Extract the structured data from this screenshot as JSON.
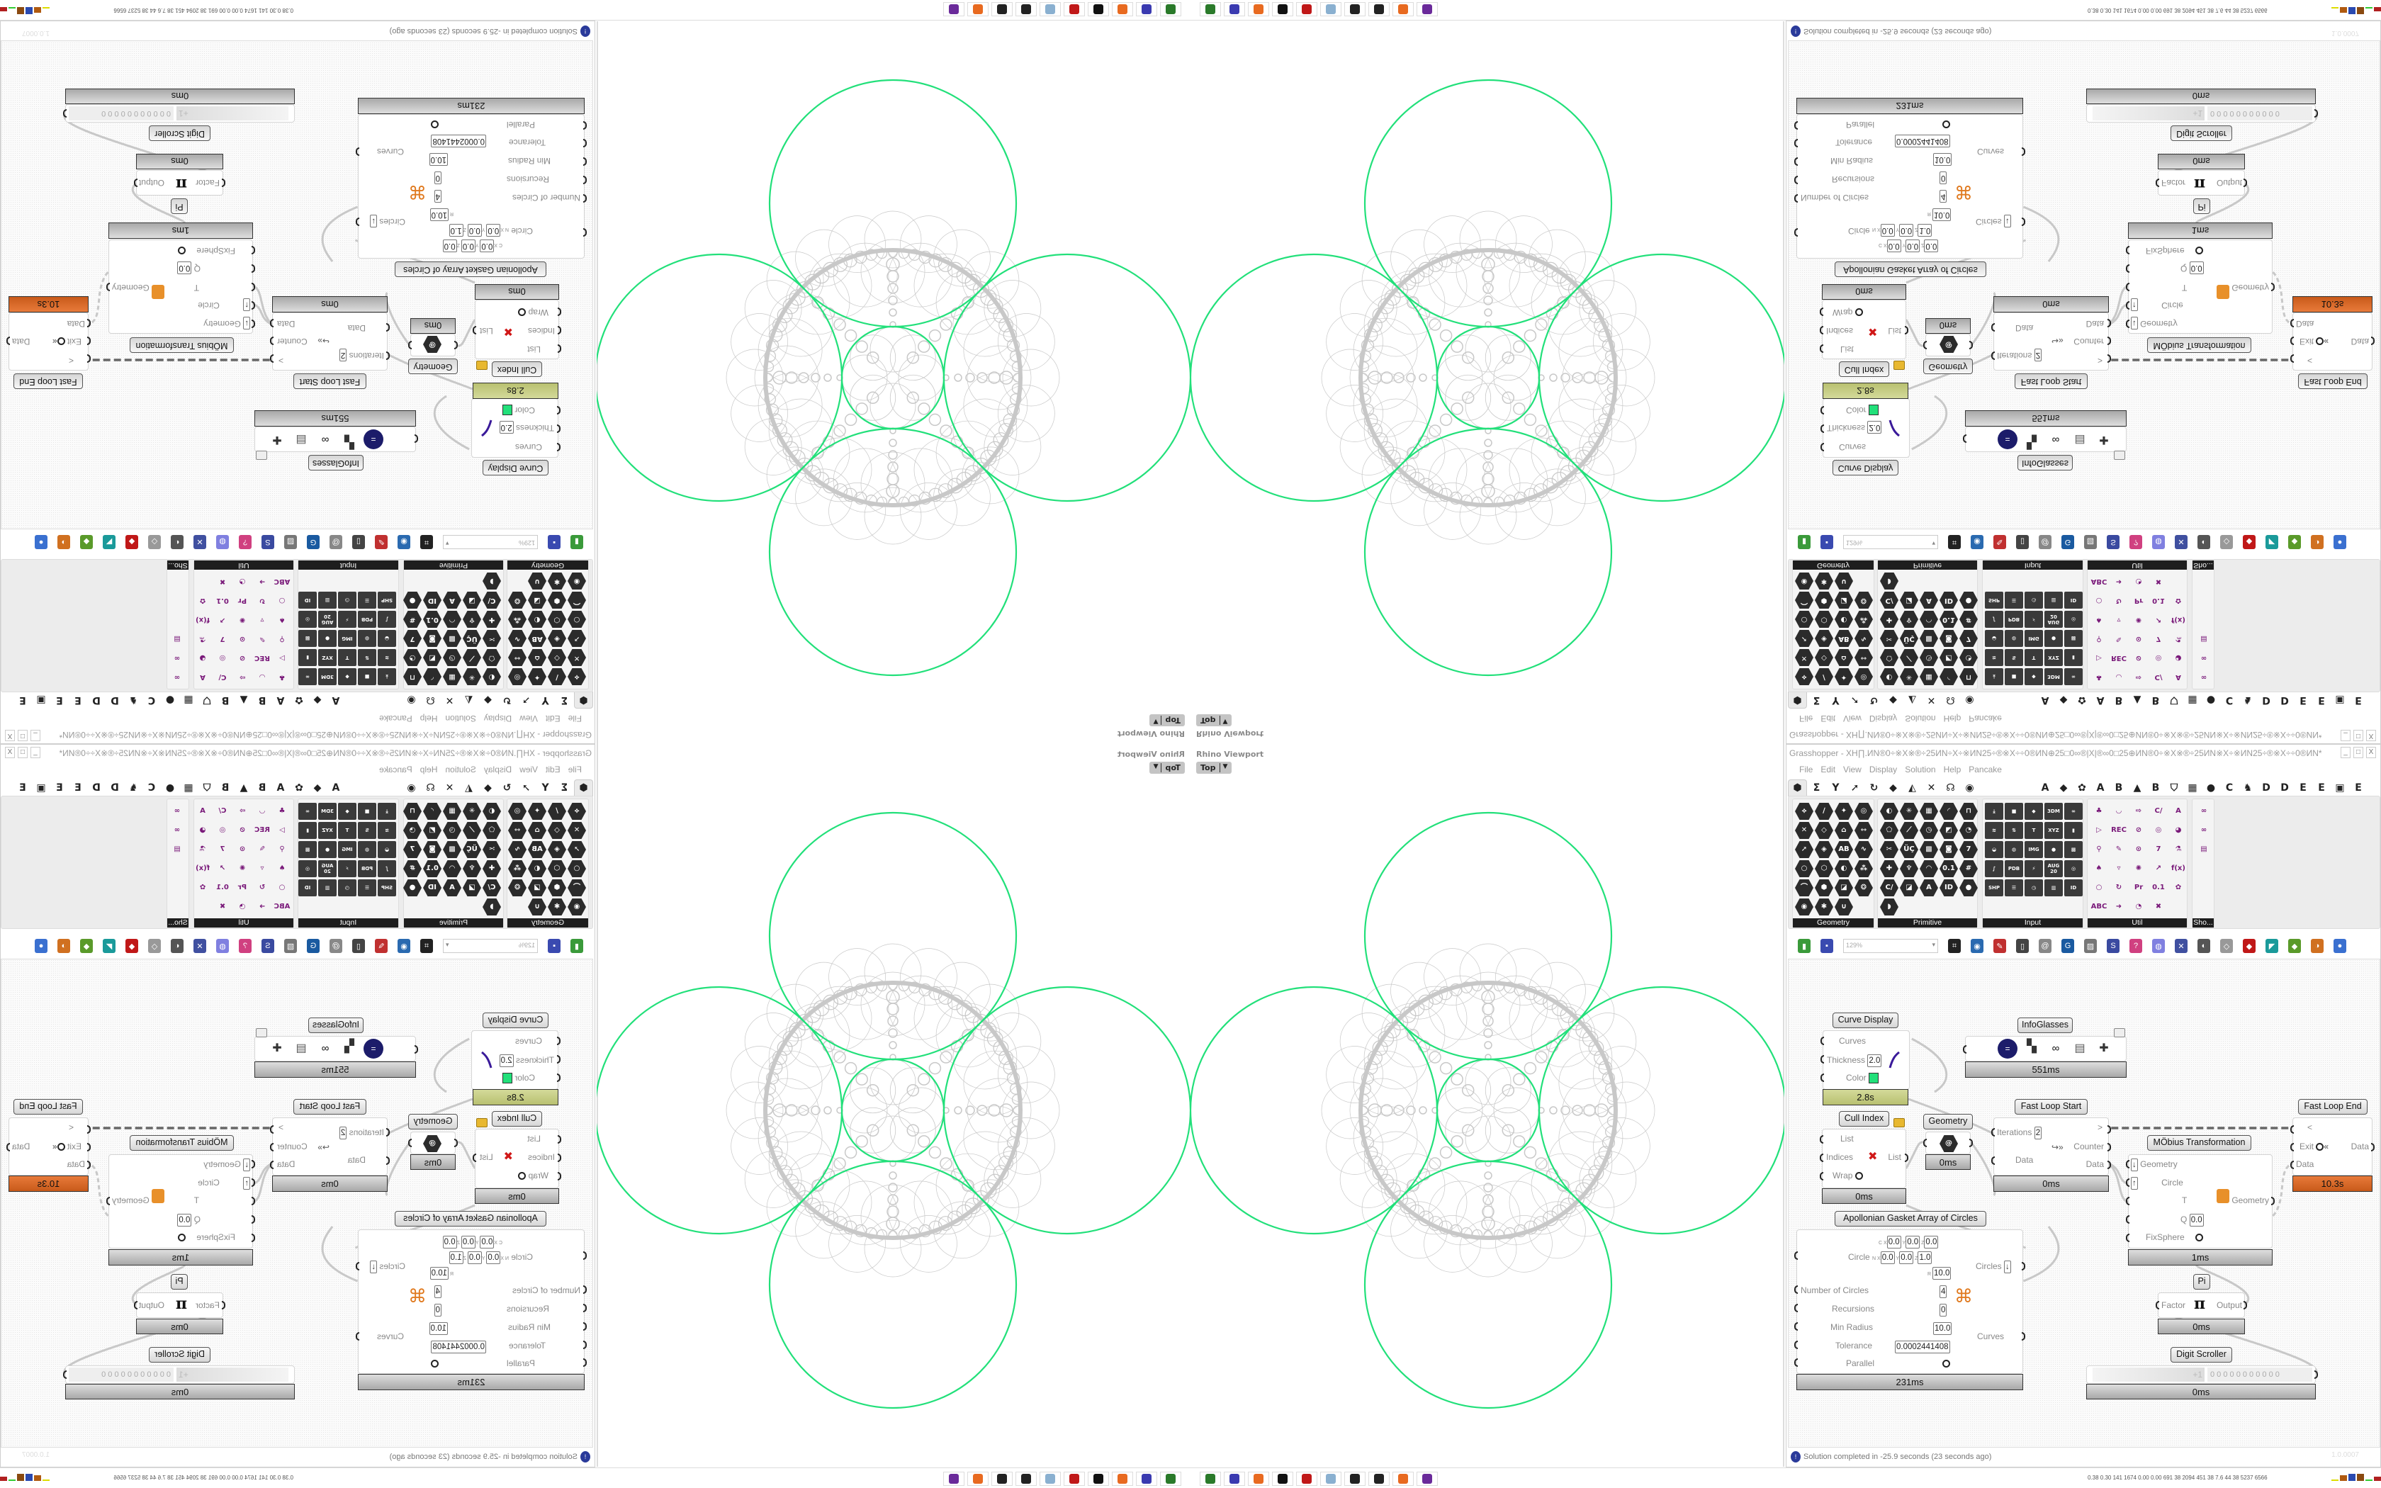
{
  "viewport": {
    "title": "Rhino Viewport",
    "view": "Top"
  },
  "gasket": {
    "curve_color": "#22e07a",
    "gasket_color": "#c8c8c8"
  },
  "grasshopper": {
    "title": "Grasshopper - XH∏.ИN®0÷※X※®÷25ИN÷X÷※ИN25÷®※X÷÷0®ИN⊕25□0∞®|X|®∞0□25⊕ИN®0÷※X※®÷25ИN※X÷※ИN25÷®※X÷÷0®ИN*",
    "window_buttons": [
      "_",
      "□",
      "X"
    ],
    "menu": [
      "File",
      "Edit",
      "View",
      "Display",
      "Solution",
      "Help",
      "Pancake"
    ],
    "tabs": [
      "⬢",
      "Σ",
      "Y",
      "➚",
      "↻",
      "◆",
      "◭",
      "✕",
      "☊",
      "◉",
      "",
      "A",
      "◆",
      "✿",
      "A",
      "B",
      "▲",
      "B",
      "⛉",
      "▦",
      "●",
      "C",
      "♞",
      "D",
      "D",
      "E",
      "E",
      "▣",
      "E"
    ],
    "panels": [
      {
        "label": "Geometry",
        "style": "hex",
        "cols": 4,
        "icons": [
          "⟡",
          "∕",
          "✦",
          "◎",
          "✕",
          "◇",
          "⌂",
          "⇿",
          "➚",
          "◈",
          "AB",
          "∿",
          "○",
          "⬡",
          "◐",
          "⁂",
          "⌒",
          "⬢",
          "◪",
          "❂",
          "◉",
          "✱",
          "∪"
        ]
      },
      {
        "label": "Primitive",
        "style": "hex",
        "cols": 5,
        "icons": [
          "◐",
          "✳",
          "▦",
          "◜",
          "⊓",
          "⬠",
          "⟋",
          "◷",
          "◩",
          "◔",
          "✂",
          "ÜÇ",
          "▩",
          "◙",
          "7",
          "✚",
          "♆",
          "◠",
          "0.1",
          "#",
          "C/",
          "◪",
          "A",
          "ID",
          "●",
          "◗"
        ]
      },
      {
        "label": "Input",
        "style": "tile",
        "cols": 5,
        "icons": [
          "⤓",
          "■",
          "◆",
          "3DM",
          "∞",
          "≋",
          "⇅",
          "T",
          "XYZ",
          "▮",
          "◒",
          "◍",
          "IMG",
          "●",
          "▩",
          "∫",
          "PDB",
          "⚡",
          "AUG 20",
          "◎",
          "SHP",
          "☰",
          "◷",
          "▥",
          "ID"
        ]
      },
      {
        "label": "Util",
        "style": "util",
        "cols": 5,
        "icons": [
          "♣",
          "◡",
          "⇨",
          "C/",
          "A",
          "▷",
          "REC",
          "⊘",
          "◎",
          "◕",
          "⚲",
          "✎",
          "⊙",
          "7",
          "⚗",
          "♠",
          "▿",
          "✺",
          "↗",
          "f(x)",
          "○",
          "↻",
          "Pr",
          "0.1",
          "✿",
          "ABC",
          "➜",
          "◔",
          "✖"
        ]
      },
      {
        "label": "Sho...",
        "style": "util",
        "cols": 1,
        "icons": [
          "∞",
          "∞",
          "▤"
        ]
      }
    ],
    "toolbar": {
      "zoom": "129%",
      "icons": [
        {
          "g": "▮",
          "c": "#3a9a3a"
        },
        {
          "g": "▪",
          "c": "#3a4ab0"
        },
        {
          "g": "",
          "c": ""
        },
        {
          "g": "⌗",
          "c": "#222"
        },
        {
          "g": "◉",
          "c": "#2a6ab0"
        },
        {
          "g": "✎",
          "c": "#c03030"
        },
        {
          "g": "▯",
          "c": "#444"
        },
        {
          "g": "@",
          "c": "#888"
        },
        {
          "g": "G",
          "c": "#1a5aa0"
        },
        {
          "g": "▨",
          "c": "#777"
        },
        {
          "g": "S",
          "c": "#3a4aa0"
        },
        {
          "g": "?",
          "c": "#d04080"
        },
        {
          "g": "◍",
          "c": "#8080e0"
        },
        {
          "g": "✕",
          "c": "#4050a0"
        },
        {
          "g": "◐",
          "c": "#555"
        },
        {
          "g": "◇",
          "c": "#999"
        },
        {
          "g": "◆",
          "c": "#c01818"
        },
        {
          "g": "◤",
          "c": "#1a9a9a"
        },
        {
          "g": "◆",
          "c": "#5a9a2a"
        },
        {
          "g": "◑",
          "c": "#d07020"
        },
        {
          "g": "●",
          "c": "#3a70d0"
        }
      ]
    },
    "nodes": {
      "curve_display": {
        "label": "Curve Display",
        "inputs": [
          "Curves",
          "Thickness",
          "Color"
        ],
        "thickness": "2.0",
        "color": "#22e07a",
        "time": "2.8s"
      },
      "infoglasses": {
        "label": "InfoGlasses",
        "time": "551ms"
      },
      "cull_index": {
        "label": "Cull Index",
        "inputs": [
          "List",
          "Indices",
          "Wrap"
        ],
        "output": "List",
        "time": "0ms"
      },
      "geometry": {
        "label": "Geometry",
        "time": "0ms"
      },
      "fast_loop_start": {
        "label": "Fast Loop Start",
        "inputs": [
          "Iterations",
          "Data"
        ],
        "iterations": "2",
        "outputs": [
          ">",
          "Counter",
          "Data"
        ],
        "time": "0ms"
      },
      "fast_loop_end": {
        "label": "Fast Loop End",
        "inputs": [
          "<",
          "Exit",
          "Data"
        ],
        "output": "Data",
        "time": "10.3s"
      },
      "mobius": {
        "label": "MÖbius Transformation",
        "inputs": [
          "Geometry",
          "Circle",
          "T",
          "Q",
          "FixSphere"
        ],
        "q": "0.0",
        "output": "Geometry",
        "time": "1ms"
      },
      "apollonian": {
        "label": "Apollonian Gasket Array of Circles",
        "circle_label": "Circle",
        "c": [
          "0.0",
          "0.0",
          "0.0"
        ],
        "n": [
          "0.0",
          "0.0",
          "1.0"
        ],
        "r": "10.0",
        "inputs": [
          "Number of Circles",
          "Recursions",
          "Min Radius",
          "Tolerance",
          "Parallel"
        ],
        "values": [
          "4",
          "0",
          "10.0",
          "0.0002441408"
        ],
        "outputs": [
          "Circles",
          "Curves"
        ],
        "axis": {
          "c": "C",
          "n": "N",
          "x": "X",
          "y": "Y",
          "z": "Z",
          "r": "R"
        },
        "time": "231ms"
      },
      "pi": {
        "label": "Pi",
        "input": "Factor",
        "symbol": "π",
        "output": "Output",
        "time": "0ms"
      },
      "digit_scroller": {
        "label": "Digit Scroller",
        "sign": "+1",
        "digits": "0 0 0 0 0 0 0 0 0 0 0",
        "time": "0ms"
      }
    },
    "status": "Solution completed in -25.9 seconds (23 seconds ago)",
    "version": "1.0.0007"
  },
  "taskbar": {
    "apps": [
      {
        "name": "terminal",
        "color": "#2a7a2a"
      },
      {
        "name": "save-64",
        "color": "#3a3ab0"
      },
      {
        "name": "firefox",
        "color": "#e86a20"
      },
      {
        "name": "rhino",
        "color": "#111"
      },
      {
        "name": "settings",
        "color": "#c01818"
      },
      {
        "name": "notepad",
        "color": "#8ab0d0"
      },
      {
        "name": "app-h",
        "color": "#222"
      },
      {
        "name": "app-h",
        "color": "#222"
      },
      {
        "name": "firefox",
        "color": "#e86a20"
      },
      {
        "name": "tor",
        "color": "#6a2a9a"
      }
    ],
    "tray_text": "0.38 0.30 141 1674 0.00 0.00 691  38 2094 451  38  7.6  44  38 5237 6566"
  }
}
